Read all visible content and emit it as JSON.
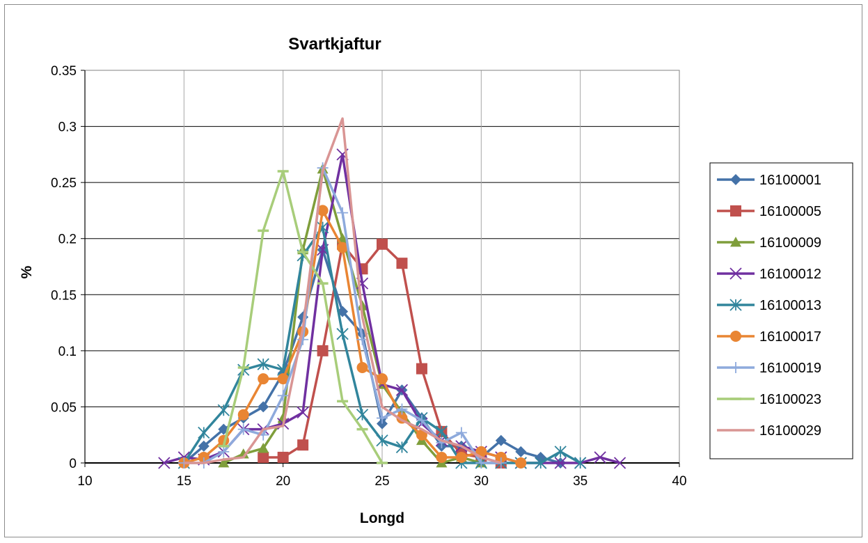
{
  "chart_data": {
    "type": "line",
    "title": "Svartkjaftur",
    "xlabel": "Longd",
    "ylabel": "%",
    "xlim": [
      10,
      40
    ],
    "ylim": [
      0,
      0.35
    ],
    "x_ticks": [
      "10",
      "15",
      "20",
      "25",
      "30",
      "35",
      "40"
    ],
    "y_ticks": [
      "0",
      "0.05",
      "0.1",
      "0.15",
      "0.2",
      "0.25",
      "0.3",
      "0.35"
    ],
    "grid": true,
    "legend_position": "right",
    "series": [
      {
        "name": "16100001",
        "color": "#4472a8",
        "marker": "diamond",
        "points": [
          [
            15,
            0
          ],
          [
            16,
            0.015
          ],
          [
            17,
            0.03
          ],
          [
            18,
            0.04
          ],
          [
            19,
            0.05
          ],
          [
            20,
            0.08
          ],
          [
            21,
            0.13
          ],
          [
            22,
            0.19
          ],
          [
            23,
            0.135
          ],
          [
            24,
            0.115
          ],
          [
            25,
            0.035
          ],
          [
            26,
            0.065
          ],
          [
            27,
            0.04
          ],
          [
            28,
            0.015
          ],
          [
            29,
            0.015
          ],
          [
            30,
            0.005
          ],
          [
            31,
            0.02
          ],
          [
            32,
            0.01
          ],
          [
            33,
            0.005
          ],
          [
            34,
            0
          ]
        ]
      },
      {
        "name": "16100005",
        "color": "#c0504d",
        "marker": "square",
        "points": [
          [
            19,
            0.005
          ],
          [
            20,
            0.005
          ],
          [
            21,
            0.016
          ],
          [
            22,
            0.1
          ],
          [
            23,
            0.195
          ],
          [
            24,
            0.173
          ],
          [
            25,
            0.195
          ],
          [
            26,
            0.178
          ],
          [
            27,
            0.084
          ],
          [
            28,
            0.028
          ],
          [
            29,
            0.008
          ],
          [
            30,
            0.005
          ],
          [
            31,
            0
          ]
        ]
      },
      {
        "name": "16100009",
        "color": "#7f9e3b",
        "marker": "triangle",
        "points": [
          [
            17,
            0
          ],
          [
            18,
            0.008
          ],
          [
            19,
            0.013
          ],
          [
            20,
            0.04
          ],
          [
            21,
            0.19
          ],
          [
            22,
            0.262
          ],
          [
            23,
            0.2
          ],
          [
            24,
            0.14
          ],
          [
            25,
            0.07
          ],
          [
            26,
            0.045
          ],
          [
            27,
            0.02
          ],
          [
            28,
            0
          ],
          [
            29,
            0.005
          ],
          [
            30,
            0
          ]
        ]
      },
      {
        "name": "16100012",
        "color": "#7030a0",
        "marker": "x",
        "points": [
          [
            14,
            0
          ],
          [
            15,
            0.005
          ],
          [
            16,
            0.003
          ],
          [
            17,
            0.01
          ],
          [
            18,
            0.03
          ],
          [
            19,
            0.03
          ],
          [
            20,
            0.035
          ],
          [
            21,
            0.045
          ],
          [
            22,
            0.19
          ],
          [
            23,
            0.275
          ],
          [
            24,
            0.16
          ],
          [
            25,
            0.07
          ],
          [
            26,
            0.065
          ],
          [
            27,
            0.035
          ],
          [
            28,
            0.02
          ],
          [
            29,
            0.015
          ],
          [
            30,
            0.01
          ],
          [
            31,
            0.005
          ],
          [
            32,
            0
          ],
          [
            33,
            0
          ],
          [
            34,
            0
          ],
          [
            35,
            0
          ],
          [
            36,
            0.005
          ],
          [
            37,
            0
          ]
        ]
      },
      {
        "name": "16100013",
        "color": "#31859c",
        "marker": "asterisk",
        "points": [
          [
            15,
            0
          ],
          [
            16,
            0.027
          ],
          [
            17,
            0.047
          ],
          [
            18,
            0.083
          ],
          [
            19,
            0.088
          ],
          [
            20,
            0.083
          ],
          [
            21,
            0.185
          ],
          [
            22,
            0.21
          ],
          [
            23,
            0.115
          ],
          [
            24,
            0.043
          ],
          [
            25,
            0.02
          ],
          [
            26,
            0.014
          ],
          [
            27,
            0.04
          ],
          [
            28,
            0.028
          ],
          [
            29,
            0
          ],
          [
            30,
            0
          ],
          [
            31,
            0
          ],
          [
            32,
            0
          ],
          [
            33,
            0
          ],
          [
            34,
            0.01
          ],
          [
            35,
            0
          ]
        ]
      },
      {
        "name": "16100017",
        "color": "#e98533",
        "marker": "circle",
        "points": [
          [
            15,
            0
          ],
          [
            16,
            0.005
          ],
          [
            17,
            0.02
          ],
          [
            18,
            0.043
          ],
          [
            19,
            0.075
          ],
          [
            20,
            0.075
          ],
          [
            21,
            0.117
          ],
          [
            22,
            0.225
          ],
          [
            23,
            0.192
          ],
          [
            24,
            0.085
          ],
          [
            25,
            0.075
          ],
          [
            26,
            0.04
          ],
          [
            27,
            0.025
          ],
          [
            28,
            0.005
          ],
          [
            29,
            0.005
          ],
          [
            30,
            0.01
          ],
          [
            31,
            0.005
          ],
          [
            32,
            0
          ]
        ]
      },
      {
        "name": "16100019",
        "color": "#8eaadc",
        "marker": "plus",
        "points": [
          [
            15,
            0
          ],
          [
            16,
            0
          ],
          [
            17,
            0.01
          ],
          [
            18,
            0.03
          ],
          [
            19,
            0.025
          ],
          [
            20,
            0.06
          ],
          [
            21,
            0.11
          ],
          [
            22,
            0.263
          ],
          [
            23,
            0.223
          ],
          [
            24,
            0.11
          ],
          [
            25,
            0.04
          ],
          [
            26,
            0.048
          ],
          [
            27,
            0.038
          ],
          [
            28,
            0.018
          ],
          [
            29,
            0.027
          ],
          [
            30,
            0
          ],
          [
            31,
            0
          ]
        ]
      },
      {
        "name": "16100023",
        "color": "#a8cd7a",
        "marker": "dash",
        "points": [
          [
            17,
            0.015
          ],
          [
            18,
            0.085
          ],
          [
            19,
            0.207
          ],
          [
            20,
            0.26
          ],
          [
            21,
            0.188
          ],
          [
            22,
            0.16
          ],
          [
            23,
            0.055
          ],
          [
            24,
            0.03
          ],
          [
            25,
            0
          ]
        ]
      },
      {
        "name": "16100029",
        "color": "#d99594",
        "marker": "none",
        "points": [
          [
            15,
            0
          ],
          [
            16,
            0
          ],
          [
            17,
            0.003
          ],
          [
            18,
            0.005
          ],
          [
            19,
            0.03
          ],
          [
            20,
            0.033
          ],
          [
            21,
            0.12
          ],
          [
            22,
            0.26
          ],
          [
            23,
            0.307
          ],
          [
            24,
            0.13
          ],
          [
            25,
            0.05
          ],
          [
            26,
            0.038
          ],
          [
            27,
            0.03
          ],
          [
            28,
            0.02
          ],
          [
            29,
            0.015
          ],
          [
            30,
            0.005
          ],
          [
            31,
            0
          ]
        ]
      }
    ]
  }
}
